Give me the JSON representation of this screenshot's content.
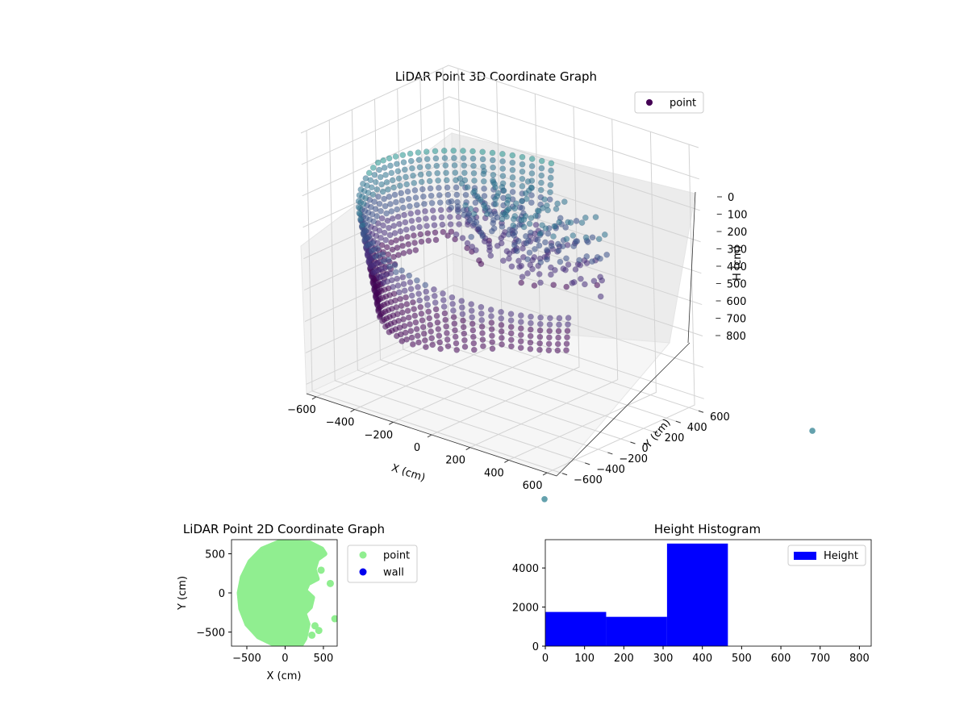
{
  "chart_data": [
    {
      "type": "scatter",
      "projection": "3d",
      "title": "LiDAR Point 3D Coordinate Graph",
      "xlabel": "X (cm)",
      "ylabel": "Y (cm)",
      "zlabel": "H (cm)",
      "xticks": [
        "−600",
        "−400",
        "−200",
        "0",
        "200",
        "400",
        "600"
      ],
      "yticks": [
        "−600",
        "−400",
        "−200",
        "0",
        "200",
        "400",
        "600"
      ],
      "zticks": [
        "0",
        "100",
        "200",
        "300",
        "400",
        "500",
        "600",
        "700",
        "800"
      ],
      "xlim": [
        -650,
        650
      ],
      "ylim": [
        -650,
        650
      ],
      "zlim": [
        0,
        830
      ],
      "z_inverted": true,
      "grid": true,
      "legend": {
        "entries": [
          "point"
        ],
        "placement": "top-right"
      },
      "series": [
        {
          "name": "point",
          "color": "#440154",
          "colormap": "viridis",
          "description_points": [
            {
              "x": -450,
              "y": 300,
              "h": 200
            },
            {
              "x": 0,
              "y": 600,
              "h": 250
            },
            {
              "x": 300,
              "y": 0,
              "h": 330
            },
            {
              "x": -200,
              "y": -500,
              "h": 400
            }
          ]
        }
      ],
      "outliers": [
        {
          "x": 650,
          "y": -600,
          "h": 830
        },
        {
          "x": 600,
          "y": 650,
          "h": 830
        }
      ]
    },
    {
      "type": "scatter",
      "title": "LiDAR Point 2D Coordinate Graph",
      "xlabel": "X (cm)",
      "ylabel": "Y (cm)",
      "xticks": [
        "−500",
        "0",
        "500"
      ],
      "yticks": [
        "−500",
        "0",
        "500"
      ],
      "xlim": [
        -700,
        680
      ],
      "ylim": [
        -680,
        680
      ],
      "legend": {
        "entries": [
          "point",
          "wall"
        ],
        "placement": "right-outside"
      },
      "series": [
        {
          "name": "point",
          "color": "#90ee90",
          "cloud_outline": [
            [
              -80,
              650
            ],
            [
              320,
              640
            ],
            [
              480,
              560
            ],
            [
              520,
              500
            ],
            [
              420,
              430
            ],
            [
              380,
              300
            ],
            [
              420,
              180
            ],
            [
              300,
              120
            ],
            [
              260,
              30
            ],
            [
              360,
              -60
            ],
            [
              330,
              -180
            ],
            [
              250,
              -260
            ],
            [
              300,
              -400
            ],
            [
              260,
              -580
            ],
            [
              200,
              -680
            ],
            [
              -100,
              -680
            ],
            [
              -350,
              -560
            ],
            [
              -500,
              -400
            ],
            [
              -580,
              -200
            ],
            [
              -600,
              0
            ],
            [
              -560,
              200
            ],
            [
              -460,
              400
            ],
            [
              -300,
              560
            ]
          ],
          "outliers": [
            {
              "x": 590,
              "y": 120
            },
            {
              "x": 650,
              "y": -330
            },
            {
              "x": 350,
              "y": -540
            },
            {
              "x": 440,
              "y": -480
            },
            {
              "x": 390,
              "y": -420
            },
            {
              "x": 470,
              "y": 290
            }
          ]
        },
        {
          "name": "wall",
          "color": "#0000ee",
          "values": []
        }
      ]
    },
    {
      "type": "bar",
      "title": "Height Histogram",
      "xticks": [
        "0",
        "100",
        "200",
        "300",
        "400",
        "500",
        "600",
        "700",
        "800"
      ],
      "yticks": [
        "0",
        "2000",
        "4000"
      ],
      "xlim": [
        0,
        830
      ],
      "ylim": [
        0,
        5450
      ],
      "legend": {
        "entries": [
          "Height"
        ],
        "placement": "top-right"
      },
      "series": [
        {
          "name": "Height",
          "color": "#0000ff",
          "bins": [
            {
              "x0": 0,
              "x1": 155,
              "count": 1750
            },
            {
              "x0": 155,
              "x1": 310,
              "count": 1500
            },
            {
              "x0": 310,
              "x1": 465,
              "count": 5250
            },
            {
              "x0": 465,
              "x1": 620,
              "count": 0
            },
            {
              "x0": 620,
              "x1": 775,
              "count": 0
            },
            {
              "x0": 775,
              "x1": 830,
              "count": 0
            }
          ]
        }
      ]
    }
  ]
}
